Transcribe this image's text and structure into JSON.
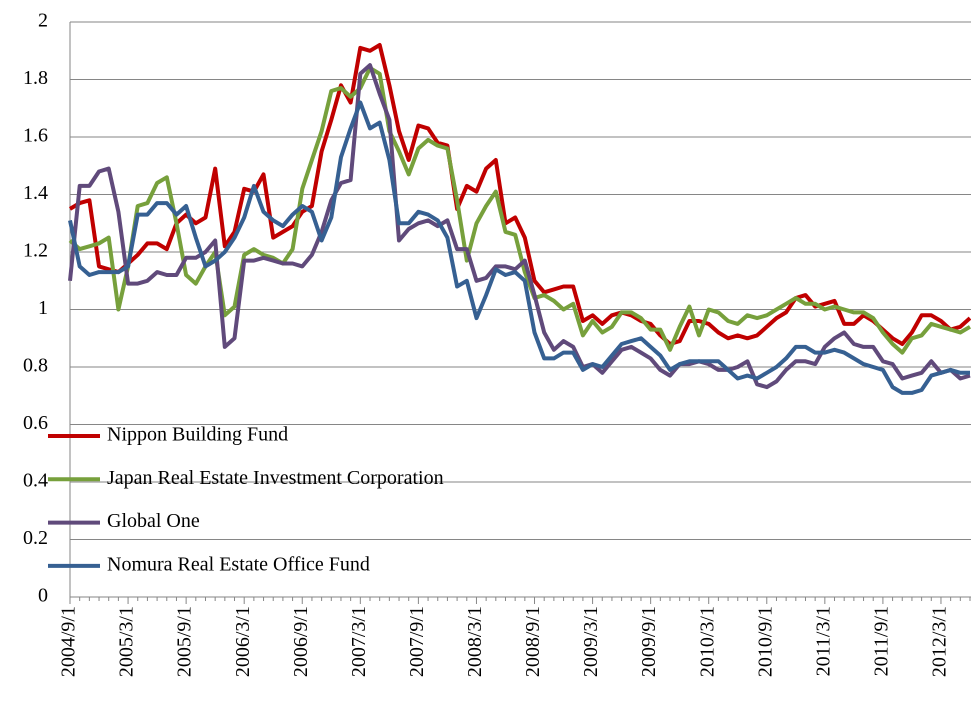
{
  "chart_data": {
    "type": "line",
    "categories": [
      "2004/9/1",
      null,
      null,
      null,
      null,
      null,
      "2005/3/1",
      null,
      null,
      null,
      null,
      null,
      "2005/9/1",
      null,
      null,
      null,
      null,
      null,
      "2006/3/1",
      null,
      null,
      null,
      null,
      null,
      "2006/9/1",
      null,
      null,
      null,
      null,
      null,
      "2007/3/1",
      null,
      null,
      null,
      null,
      null,
      "2007/9/1",
      null,
      null,
      null,
      null,
      null,
      "2008/3/1",
      null,
      null,
      null,
      null,
      null,
      "2008/9/1",
      null,
      null,
      null,
      null,
      null,
      "2009/3/1",
      null,
      null,
      null,
      null,
      null,
      "2009/9/1",
      null,
      null,
      null,
      null,
      null,
      "2010/3/1",
      null,
      null,
      null,
      null,
      null,
      "2010/9/1",
      null,
      null,
      null,
      null,
      null,
      "2011/3/1",
      null,
      null,
      null,
      null,
      null,
      "2011/9/1",
      null,
      null,
      null,
      null,
      null,
      "2012/3/1",
      null,
      null,
      null
    ],
    "series": [
      {
        "name": "Nippon Building Fund",
        "color": "#c00000",
        "values": [
          1.35,
          1.37,
          1.38,
          1.15,
          1.14,
          1.13,
          1.16,
          1.19,
          1.23,
          1.23,
          1.21,
          1.3,
          1.33,
          1.3,
          1.32,
          1.49,
          1.22,
          1.27,
          1.42,
          1.41,
          1.47,
          1.25,
          1.27,
          1.29,
          1.34,
          1.36,
          1.55,
          1.66,
          1.78,
          1.72,
          1.91,
          1.9,
          1.92,
          1.78,
          1.62,
          1.52,
          1.64,
          1.63,
          1.58,
          1.57,
          1.35,
          1.43,
          1.41,
          1.49,
          1.52,
          1.3,
          1.32,
          1.25,
          1.1,
          1.06,
          1.07,
          1.08,
          1.08,
          0.96,
          0.98,
          0.95,
          0.98,
          0.99,
          0.98,
          0.96,
          0.95,
          0.91,
          0.88,
          0.89,
          0.96,
          0.96,
          0.95,
          0.92,
          0.9,
          0.91,
          0.9,
          0.91,
          0.94,
          0.97,
          0.99,
          1.04,
          1.05,
          1.01,
          1.02,
          1.03,
          0.95,
          0.95,
          0.98,
          0.96,
          0.93,
          0.9,
          0.88,
          0.92,
          0.98,
          0.98,
          0.96,
          0.93,
          0.94,
          0.97
        ]
      },
      {
        "name": "Japan Real Estate Investment Corporation",
        "color": "#77a03c",
        "values": [
          1.24,
          1.21,
          1.22,
          1.23,
          1.25,
          1.0,
          1.15,
          1.36,
          1.37,
          1.44,
          1.46,
          1.3,
          1.12,
          1.09,
          1.15,
          1.2,
          0.98,
          1.01,
          1.19,
          1.21,
          1.19,
          1.18,
          1.16,
          1.21,
          1.42,
          1.52,
          1.62,
          1.76,
          1.77,
          1.74,
          1.77,
          1.84,
          1.82,
          1.62,
          1.55,
          1.47,
          1.56,
          1.59,
          1.57,
          1.56,
          1.38,
          1.17,
          1.3,
          1.36,
          1.41,
          1.27,
          1.26,
          1.13,
          1.04,
          1.05,
          1.03,
          1.0,
          1.02,
          0.91,
          0.96,
          0.92,
          0.94,
          0.99,
          0.99,
          0.97,
          0.93,
          0.93,
          0.86,
          0.94,
          1.01,
          0.91,
          1.0,
          0.99,
          0.96,
          0.95,
          0.98,
          0.97,
          0.98,
          1.0,
          1.02,
          1.04,
          1.02,
          1.02,
          1.0,
          1.01,
          1.0,
          0.99,
          0.99,
          0.97,
          0.92,
          0.88,
          0.85,
          0.9,
          0.91,
          0.95,
          0.94,
          0.93,
          0.92,
          0.94
        ]
      },
      {
        "name": "Global One",
        "color": "#604a7b",
        "values": [
          1.1,
          1.43,
          1.43,
          1.48,
          1.49,
          1.34,
          1.09,
          1.09,
          1.1,
          1.13,
          1.12,
          1.12,
          1.18,
          1.18,
          1.2,
          1.24,
          0.87,
          0.9,
          1.17,
          1.17,
          1.18,
          1.17,
          1.16,
          1.16,
          1.15,
          1.19,
          1.27,
          1.38,
          1.44,
          1.45,
          1.82,
          1.85,
          1.75,
          1.66,
          1.24,
          1.28,
          1.3,
          1.31,
          1.29,
          1.31,
          1.21,
          1.21,
          1.1,
          1.11,
          1.15,
          1.15,
          1.14,
          1.17,
          1.05,
          0.92,
          0.86,
          0.89,
          0.87,
          0.8,
          0.81,
          0.78,
          0.82,
          0.86,
          0.87,
          0.85,
          0.83,
          0.79,
          0.77,
          0.81,
          0.81,
          0.82,
          0.81,
          0.79,
          0.79,
          0.8,
          0.82,
          0.74,
          0.73,
          0.75,
          0.79,
          0.82,
          0.82,
          0.81,
          0.87,
          0.9,
          0.92,
          0.88,
          0.87,
          0.87,
          0.82,
          0.81,
          0.76,
          0.77,
          0.78,
          0.82,
          0.78,
          0.79,
          0.76,
          0.77
        ]
      },
      {
        "name": "Nomura Real Estate Office Fund",
        "color": "#366092",
        "values": [
          1.31,
          1.15,
          1.12,
          1.13,
          1.13,
          1.13,
          1.15,
          1.33,
          1.33,
          1.37,
          1.37,
          1.33,
          1.36,
          1.25,
          1.15,
          1.17,
          1.2,
          1.25,
          1.32,
          1.43,
          1.34,
          1.31,
          1.29,
          1.33,
          1.36,
          1.34,
          1.24,
          1.32,
          1.53,
          1.63,
          1.72,
          1.63,
          1.65,
          1.52,
          1.3,
          1.3,
          1.34,
          1.33,
          1.31,
          1.25,
          1.08,
          1.1,
          0.97,
          1.05,
          1.14,
          1.12,
          1.13,
          1.1,
          0.92,
          0.83,
          0.83,
          0.85,
          0.85,
          0.79,
          0.81,
          0.8,
          0.84,
          0.88,
          0.89,
          0.9,
          0.87,
          0.84,
          0.79,
          0.81,
          0.82,
          0.82,
          0.82,
          0.82,
          0.79,
          0.76,
          0.77,
          0.76,
          0.78,
          0.8,
          0.83,
          0.87,
          0.87,
          0.85,
          0.85,
          0.86,
          0.85,
          0.83,
          0.81,
          0.8,
          0.79,
          0.73,
          0.71,
          0.71,
          0.72,
          0.77,
          0.78,
          0.79,
          0.78,
          0.78
        ]
      }
    ],
    "ylim": [
      0,
      2
    ],
    "yticks": [
      0,
      0.2,
      0.4,
      0.6,
      0.8,
      1,
      1.2,
      1.4,
      1.6,
      1.8,
      2
    ],
    "grid": true,
    "legend": "lower left"
  }
}
